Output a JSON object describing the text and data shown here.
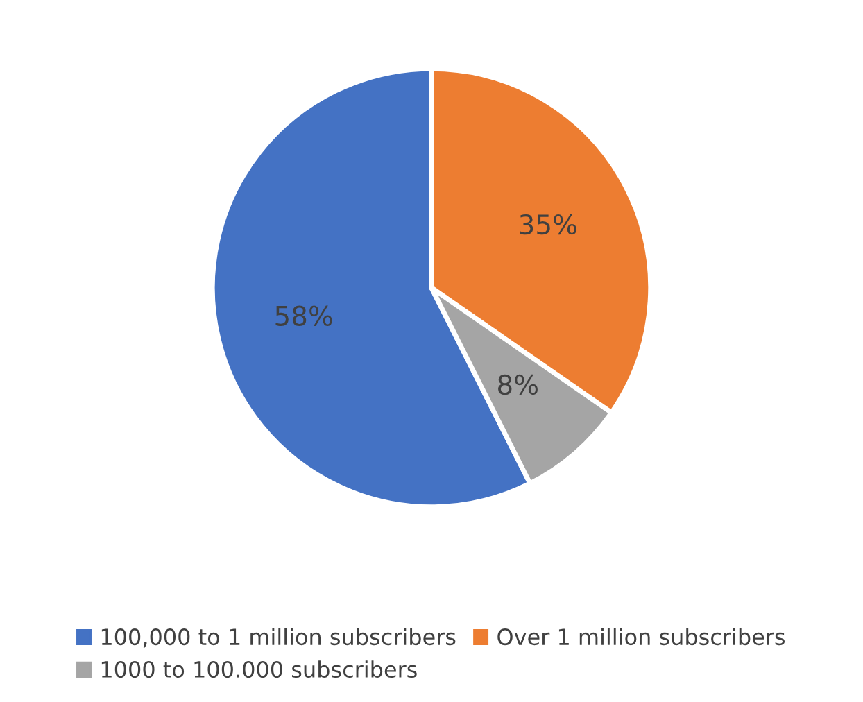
{
  "chart_data": {
    "type": "pie",
    "categories": [
      "100,000 to 1 million subscribers",
      "Over 1 million subscribers",
      "1000 to 100.000 subscribers"
    ],
    "values": [
      58,
      35,
      8
    ],
    "colors": [
      "#4472c4",
      "#ed7d31",
      "#a5a5a5"
    ],
    "value_labels": [
      "58%",
      "35%",
      "8%"
    ],
    "legend": "bottom"
  }
}
